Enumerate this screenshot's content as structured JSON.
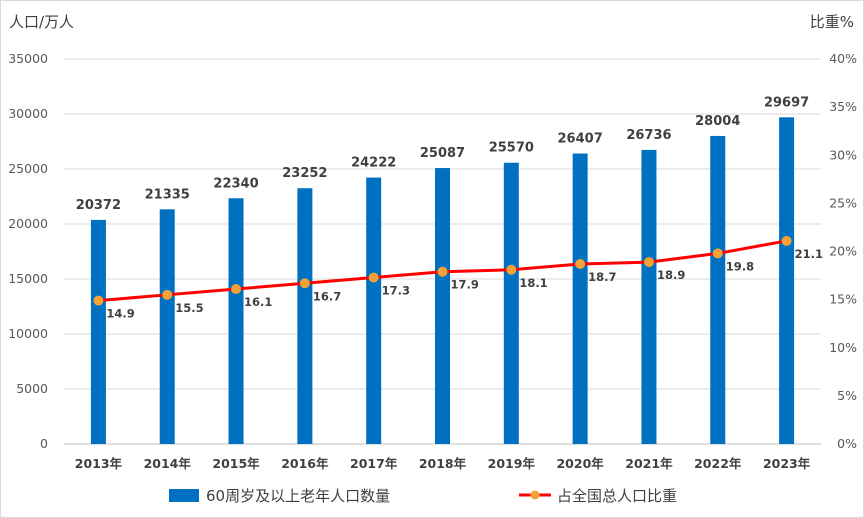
{
  "chart_data": {
    "type": "bar",
    "categories": [
      "2013年",
      "2014年",
      "2015年",
      "2016年",
      "2017年",
      "2018年",
      "2019年",
      "2020年",
      "2021年",
      "2022年",
      "2023年"
    ],
    "series": [
      {
        "name": "60周岁及以上老年人口数量",
        "type": "bar",
        "axis": "left",
        "color": "#0070c0",
        "values": [
          20372,
          21335,
          22340,
          23252,
          24222,
          25087,
          25570,
          26407,
          26736,
          28004,
          29697
        ]
      },
      {
        "name": "占全国总人口比重",
        "type": "line",
        "axis": "right",
        "color": "#ff0000",
        "marker_color": "#f4a236",
        "values": [
          14.9,
          15.5,
          16.1,
          16.7,
          17.3,
          17.9,
          18.1,
          18.7,
          18.9,
          19.8,
          21.1
        ]
      }
    ],
    "ylabel": "人口/万人",
    "y2label": "比重%",
    "ylim": [
      0,
      35000
    ],
    "y2lim": [
      0,
      40
    ],
    "yticks": [
      "0",
      "5000",
      "10000",
      "15000",
      "20000",
      "25000",
      "30000",
      "35000"
    ],
    "y2ticks": [
      "0%",
      "5%",
      "10%",
      "15%",
      "20%",
      "25%",
      "30%",
      "35%",
      "40%"
    ],
    "legend_position": "bottom",
    "grid": true
  }
}
